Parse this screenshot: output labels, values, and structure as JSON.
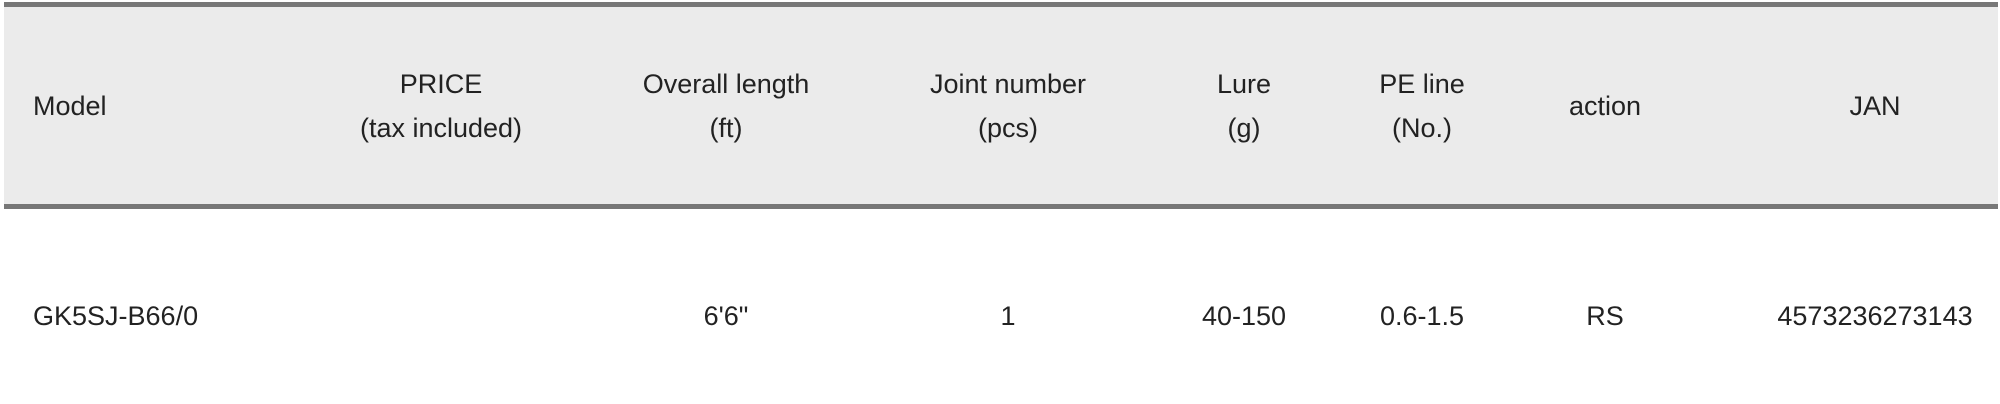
{
  "table": {
    "headers": [
      {
        "line1": "Model",
        "line2": ""
      },
      {
        "line1": "PRICE",
        "line2": "(tax included)"
      },
      {
        "line1": "Overall length",
        "line2": "(ft)"
      },
      {
        "line1": "Joint number",
        "line2": "(pcs)"
      },
      {
        "line1": "Lure",
        "line2": "(g)"
      },
      {
        "line1": "PE line",
        "line2": "(No.)"
      },
      {
        "line1": "action",
        "line2": ""
      },
      {
        "line1": "JAN",
        "line2": ""
      }
    ],
    "rows": [
      [
        "GK5SJ-B66/0",
        "",
        "6'6\"",
        "1",
        "40-150",
        "0.6-1.5",
        "RS",
        "4573236273143"
      ]
    ]
  },
  "colors": {
    "header_bg": "#ebebeb",
    "border": "#777777"
  }
}
